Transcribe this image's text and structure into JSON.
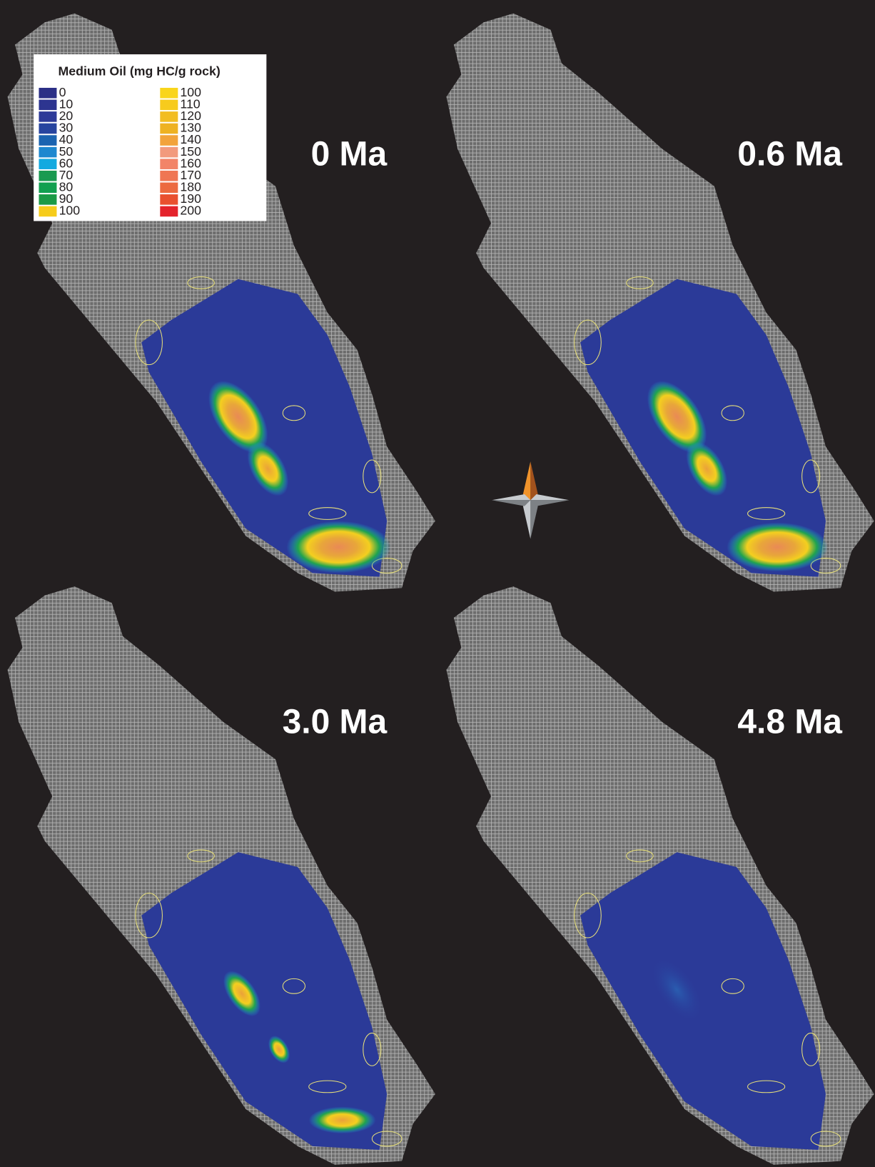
{
  "legend": {
    "title": "Medium Oil (mg HC/g rock)",
    "columns": [
      [
        {
          "label": "0",
          "color": "#2b2f86"
        },
        {
          "label": "10",
          "color": "#2d3590"
        },
        {
          "label": "20",
          "color": "#2d3a98"
        },
        {
          "label": "30",
          "color": "#27449f"
        },
        {
          "label": "40",
          "color": "#1a63b0"
        },
        {
          "label": "50",
          "color": "#1d87cf"
        },
        {
          "label": "60",
          "color": "#13a9e0"
        },
        {
          "label": "70",
          "color": "#1a9a50"
        },
        {
          "label": "80",
          "color": "#12a050"
        },
        {
          "label": "90",
          "color": "#1b9a46"
        },
        {
          "label": "100",
          "color": "#f6cc1b"
        }
      ],
      [
        {
          "label": "100",
          "color": "#f9d51a"
        },
        {
          "label": "110",
          "color": "#f7cb1d"
        },
        {
          "label": "120",
          "color": "#f2bd22"
        },
        {
          "label": "130",
          "color": "#eeb222"
        },
        {
          "label": "140",
          "color": "#f2a33b"
        },
        {
          "label": "150",
          "color": "#f29a7d"
        },
        {
          "label": "160",
          "color": "#f28468"
        },
        {
          "label": "170",
          "color": "#ef7653"
        },
        {
          "label": "180",
          "color": "#ec6a40"
        },
        {
          "label": "190",
          "color": "#e9502f"
        },
        {
          "label": "200",
          "color": "#e4232c"
        }
      ]
    ]
  },
  "panels": [
    {
      "label": "0 Ma"
    },
    {
      "label": "0.6 Ma"
    },
    {
      "label": "3.0 Ma"
    },
    {
      "label": "4.8 Ma"
    }
  ]
}
